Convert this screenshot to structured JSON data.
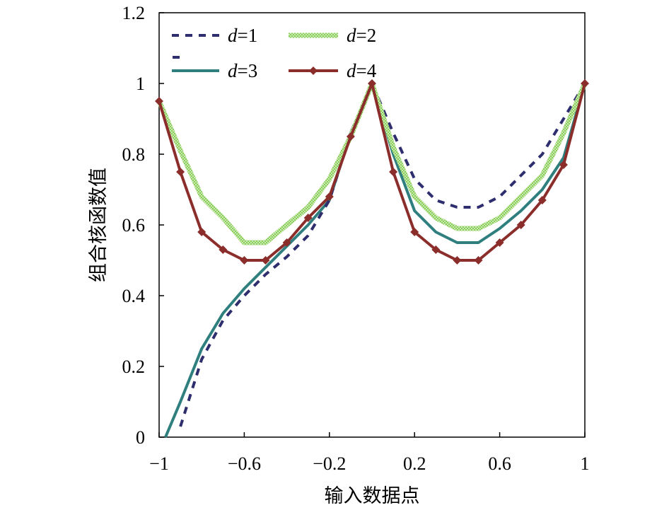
{
  "chart_data": {
    "type": "line",
    "title": "",
    "xlabel": "输入数据点",
    "ylabel": "组合核函数值",
    "xlim": [
      -1,
      1
    ],
    "ylim": [
      0,
      1.2
    ],
    "x_ticks": [
      "−1",
      "−0.6",
      "−0.2",
      "0.2",
      "0.6",
      "1"
    ],
    "x_tick_values": [
      -1,
      -0.6,
      -0.2,
      0.2,
      0.6,
      1
    ],
    "y_ticks": [
      "0",
      "0.2",
      "0.4",
      "0.6",
      "0.8",
      "1",
      "1.2"
    ],
    "y_tick_values": [
      0,
      0.2,
      0.4,
      0.6,
      0.8,
      1,
      1.2
    ],
    "legend_location": "top",
    "series": [
      {
        "name": "d=1",
        "label_var": "d",
        "label_val": "=1",
        "color": "#2E2E6E",
        "style": "dash",
        "x": [
          -0.9,
          -0.8,
          -0.7,
          -0.6,
          -0.5,
          -0.4,
          -0.3,
          -0.2,
          -0.1,
          0.0,
          0.1,
          0.2,
          0.3,
          0.4,
          0.5,
          0.6,
          0.7,
          0.8,
          0.9,
          1.0
        ],
        "y": [
          0.03,
          0.22,
          0.33,
          0.4,
          0.46,
          0.51,
          0.57,
          0.67,
          0.86,
          1.0,
          0.86,
          0.73,
          0.67,
          0.65,
          0.65,
          0.68,
          0.74,
          0.8,
          0.9,
          1.0
        ]
      },
      {
        "name": "d=2",
        "label_var": "d",
        "label_val": "=2",
        "color": "#8CCB5E",
        "style": "solid-hatched",
        "x": [
          -1.0,
          -0.9,
          -0.8,
          -0.7,
          -0.6,
          -0.5,
          -0.4,
          -0.3,
          -0.2,
          -0.1,
          0.0,
          0.1,
          0.2,
          0.3,
          0.4,
          0.5,
          0.6,
          0.7,
          0.8,
          0.9,
          1.0
        ],
        "y": [
          0.95,
          0.81,
          0.68,
          0.62,
          0.55,
          0.55,
          0.6,
          0.65,
          0.73,
          0.85,
          1.0,
          0.82,
          0.68,
          0.62,
          0.59,
          0.59,
          0.62,
          0.68,
          0.74,
          0.86,
          1.0
        ]
      },
      {
        "name": "d=3",
        "label_var": "d",
        "label_val": "=3",
        "color": "#2F7F7E",
        "style": "solid",
        "x": [
          -0.97,
          -0.9,
          -0.8,
          -0.7,
          -0.6,
          -0.5,
          -0.4,
          -0.3,
          -0.2,
          -0.1,
          0.0,
          0.1,
          0.2,
          0.3,
          0.4,
          0.5,
          0.6,
          0.7,
          0.8,
          0.9,
          1.0
        ],
        "y": [
          0.0,
          0.1,
          0.25,
          0.35,
          0.42,
          0.48,
          0.54,
          0.6,
          0.67,
          0.86,
          1.0,
          0.8,
          0.64,
          0.58,
          0.55,
          0.55,
          0.59,
          0.64,
          0.7,
          0.79,
          1.0
        ]
      },
      {
        "name": "d=4",
        "label_var": "d",
        "label_val": "=4",
        "color": "#8B2E2B",
        "style": "solid-diamond",
        "x": [
          -1.0,
          -0.9,
          -0.8,
          -0.7,
          -0.6,
          -0.5,
          -0.4,
          -0.3,
          -0.2,
          -0.1,
          0.0,
          0.1,
          0.2,
          0.3,
          0.4,
          0.5,
          0.6,
          0.7,
          0.8,
          0.9,
          1.0
        ],
        "y": [
          0.95,
          0.75,
          0.58,
          0.53,
          0.5,
          0.5,
          0.55,
          0.62,
          0.68,
          0.85,
          1.0,
          0.75,
          0.58,
          0.53,
          0.5,
          0.5,
          0.55,
          0.6,
          0.67,
          0.77,
          1.0
        ]
      }
    ]
  }
}
